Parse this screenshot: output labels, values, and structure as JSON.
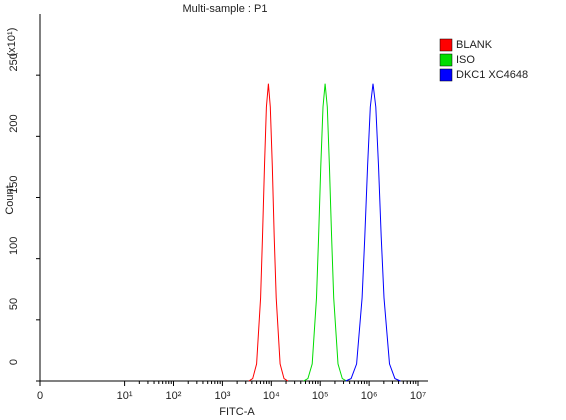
{
  "chart_data": {
    "type": "line",
    "title": "Multi-sample : P1",
    "x_label": "FITC-A",
    "y_label": "Count",
    "y_multiplier": "(x10¹)",
    "xscale": "logicle",
    "xlim": [
      0,
      16000000
    ],
    "xticks": [
      0,
      {
        "value": 10,
        "label": "10¹"
      },
      {
        "value": 100,
        "label": "10²"
      },
      {
        "value": 1000,
        "label": "10³"
      },
      {
        "value": 10000,
        "label": "10⁴"
      },
      {
        "value": 100000,
        "label": "10⁵"
      },
      {
        "value": 1000000,
        "label": "10⁶"
      },
      {
        "value": 10000000,
        "label": "10⁷"
      }
    ],
    "ylim": [
      0,
      300
    ],
    "yticks": [
      0,
      50,
      100,
      150,
      200,
      250
    ],
    "legend": "top-right",
    "series": [
      {
        "name": "BLANK",
        "color": "#ff0000",
        "x": [
          3467,
          4169,
          5012,
          6026,
          6607,
          7244,
          7943,
          8710,
          9550,
          10471,
          11482,
          12589,
          15136,
          18197,
          21878
        ],
        "values": [
          0,
          2,
          14,
          68,
          118,
          176,
          224,
          243,
          224,
          176,
          118,
          68,
          14,
          2,
          0
        ]
      },
      {
        "name": "ISO",
        "color": "#00dd00",
        "x": [
          45709,
          55976,
          68549,
          83946,
          92897,
          102802,
          113763,
          125893,
          139316,
          154170,
          170608,
          188799,
          231206,
          283139,
          346737
        ],
        "values": [
          0,
          2,
          14,
          68,
          118,
          176,
          224,
          243,
          224,
          176,
          118,
          68,
          14,
          2,
          0
        ]
      },
      {
        "name": "DKC1 XC4648",
        "color": "#0000ff",
        "x": [
          331131,
          428549,
          554626,
          717794,
          816582,
          928966,
          1056818,
          1202264,
          1367729,
          1555966,
          1770109,
          2013724,
          2606154,
          3372873,
          4365158
        ],
        "values": [
          0,
          2,
          14,
          68,
          118,
          176,
          224,
          243,
          224,
          176,
          118,
          68,
          14,
          2,
          0
        ]
      }
    ]
  }
}
